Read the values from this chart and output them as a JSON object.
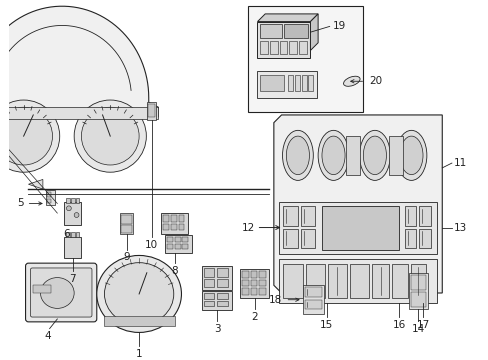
{
  "background_color": "#ffffff",
  "line_color": "#222222",
  "fig_width": 4.89,
  "fig_height": 3.6,
  "dpi": 100,
  "label_fontsize": 7.5
}
